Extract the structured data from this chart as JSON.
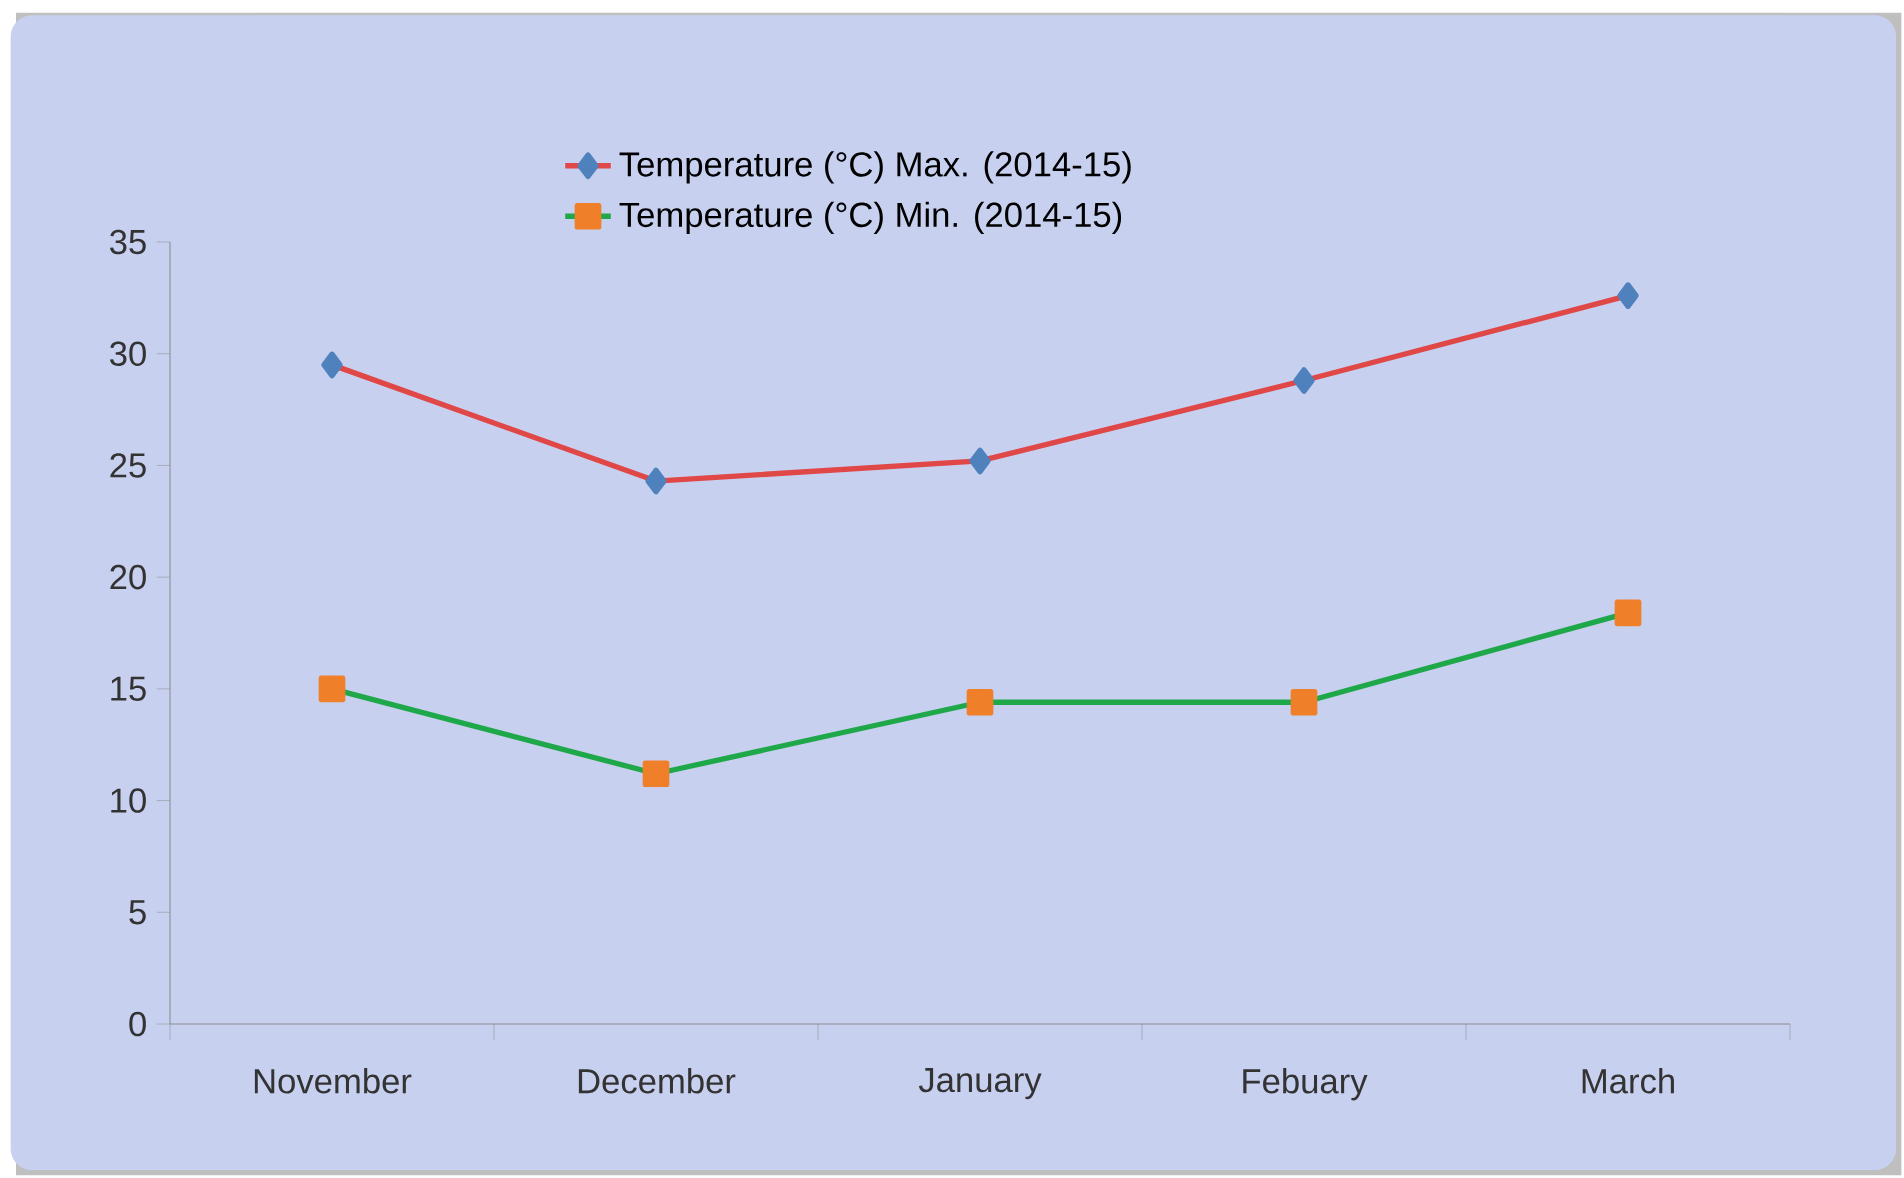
{
  "chart_data": {
    "type": "line",
    "categories": [
      "November",
      "December",
      "January",
      "Febuary",
      "March"
    ],
    "series": [
      {
        "name": "Temperature (°C) Max. (2014-15)",
        "color": "#e04848",
        "marker": "diamond",
        "colors": [
          "#4f81bd",
          "#4f81bd",
          "#4f81bd",
          "#4f81bd",
          "#4f81bd"
        ],
        "values": [
          29.5,
          24.3,
          25.2,
          28.8,
          32.6
        ]
      },
      {
        "name": "Temperature (°C) Min. (2014-15)",
        "color": "#1fa84a",
        "marker": "square",
        "colors": [
          "#f07f2a",
          "#f07f2a",
          "#f07f2a",
          "#f07f2a",
          "#f07f2a"
        ],
        "values": [
          15.0,
          11.2,
          14.4,
          14.4,
          18.4
        ]
      }
    ],
    "ylim": [
      0,
      35
    ],
    "yticks": [
      0,
      5,
      10,
      15,
      20,
      25,
      30,
      35
    ],
    "grid": false,
    "legend": "top"
  }
}
